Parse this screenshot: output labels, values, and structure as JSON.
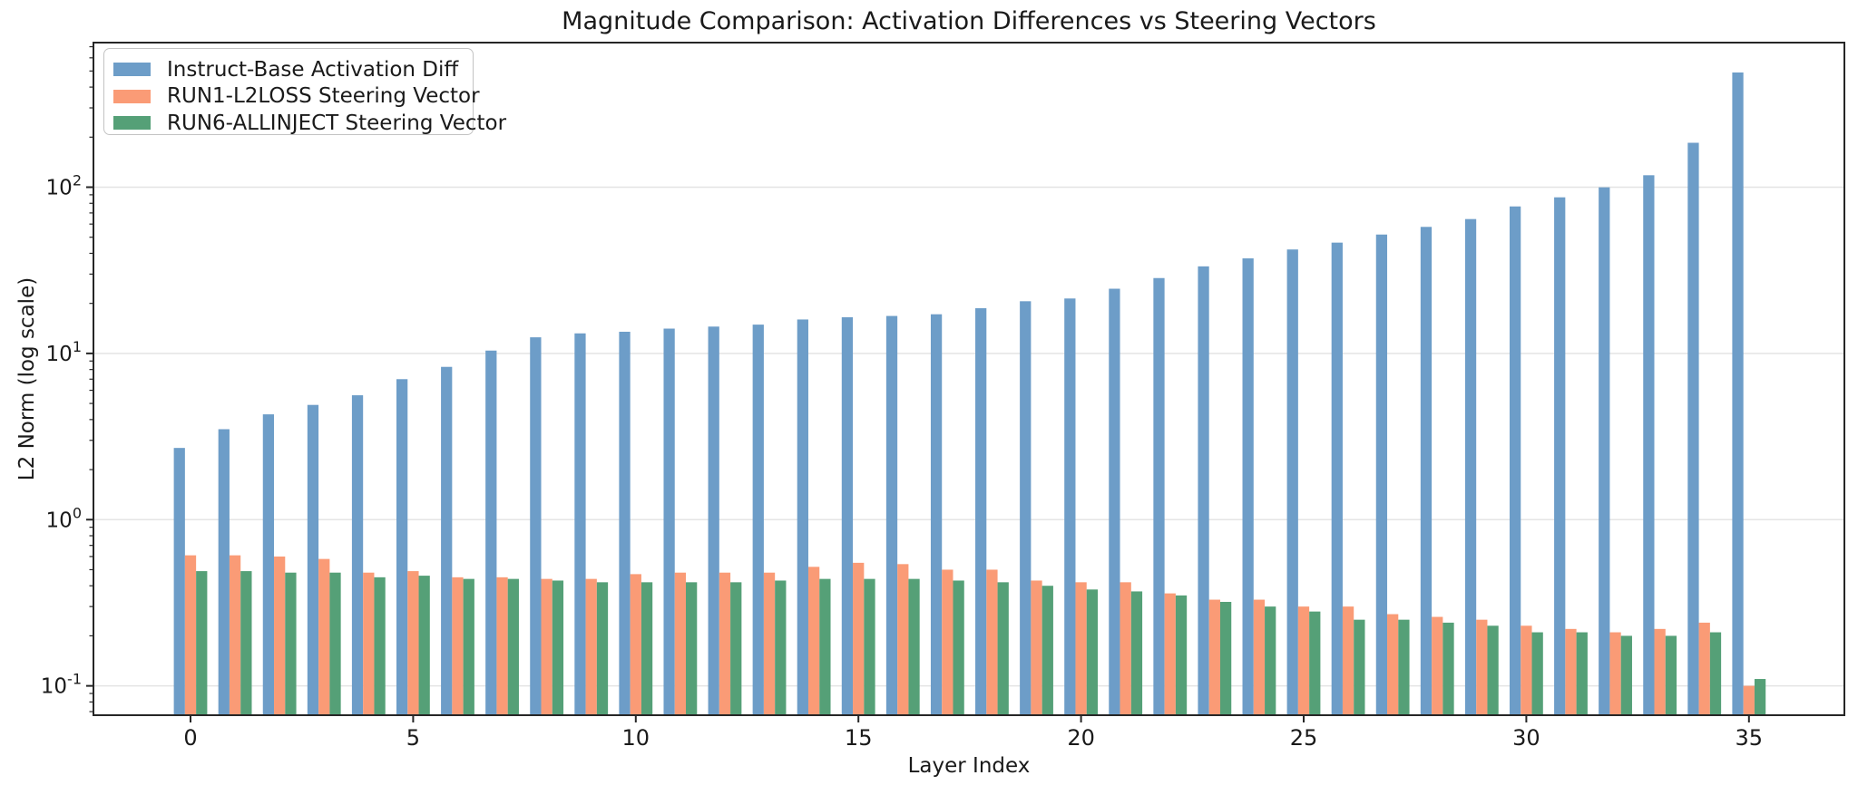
{
  "figure": {
    "title": "Magnitude Comparison: Activation Differences vs Steering Vectors",
    "xlabel": "Layer Index",
    "ylabel": "L2 Norm (log scale)"
  },
  "chart_data": {
    "type": "bar",
    "title": "Magnitude Comparison: Activation Differences vs Steering Vectors",
    "xlabel": "Layer Index",
    "ylabel": "L2 Norm (log scale)",
    "yscale": "log",
    "ylim": [
      0.0666,
      741
    ],
    "grid": true,
    "legend_position": "upper left",
    "categories": [
      0,
      1,
      2,
      3,
      4,
      5,
      6,
      7,
      8,
      9,
      10,
      11,
      12,
      13,
      14,
      15,
      16,
      17,
      18,
      19,
      20,
      21,
      22,
      23,
      24,
      25,
      26,
      27,
      28,
      29,
      30,
      31,
      32,
      33,
      34,
      35
    ],
    "xtick_values": [
      0,
      5,
      10,
      15,
      20,
      25,
      30,
      35
    ],
    "ytick_exponents": [
      -1,
      0,
      1,
      2
    ],
    "series": [
      {
        "name": "Instruct-Base Activation Diff",
        "color": "#6d9dc8",
        "values": [
          2.7,
          3.5,
          4.3,
          4.9,
          5.6,
          7.0,
          8.3,
          10.4,
          12.5,
          13.2,
          13.5,
          14.1,
          14.5,
          14.9,
          16.0,
          16.5,
          16.8,
          17.2,
          18.7,
          20.6,
          21.4,
          24.5,
          28.4,
          33.4,
          37.3,
          42.2,
          46.4,
          51.9,
          57.7,
          64.3,
          76.6,
          86.9,
          99.8,
          118,
          185,
          490
        ]
      },
      {
        "name": "RUN1-L2LOSS Steering Vector",
        "color": "#fa9b76",
        "values": [
          0.61,
          0.61,
          0.6,
          0.58,
          0.48,
          0.49,
          0.45,
          0.45,
          0.44,
          0.44,
          0.47,
          0.48,
          0.48,
          0.48,
          0.52,
          0.55,
          0.54,
          0.5,
          0.5,
          0.43,
          0.42,
          0.42,
          0.36,
          0.33,
          0.33,
          0.3,
          0.3,
          0.27,
          0.26,
          0.25,
          0.23,
          0.22,
          0.21,
          0.22,
          0.24,
          0.1
        ]
      },
      {
        "name": "RUN6-ALLINJECT Steering Vector",
        "color": "#55a077",
        "values": [
          0.49,
          0.49,
          0.48,
          0.48,
          0.45,
          0.46,
          0.44,
          0.44,
          0.43,
          0.42,
          0.42,
          0.42,
          0.42,
          0.43,
          0.44,
          0.44,
          0.44,
          0.43,
          0.42,
          0.4,
          0.38,
          0.37,
          0.35,
          0.32,
          0.3,
          0.28,
          0.25,
          0.25,
          0.24,
          0.23,
          0.21,
          0.21,
          0.2,
          0.2,
          0.21,
          0.11
        ]
      }
    ]
  }
}
